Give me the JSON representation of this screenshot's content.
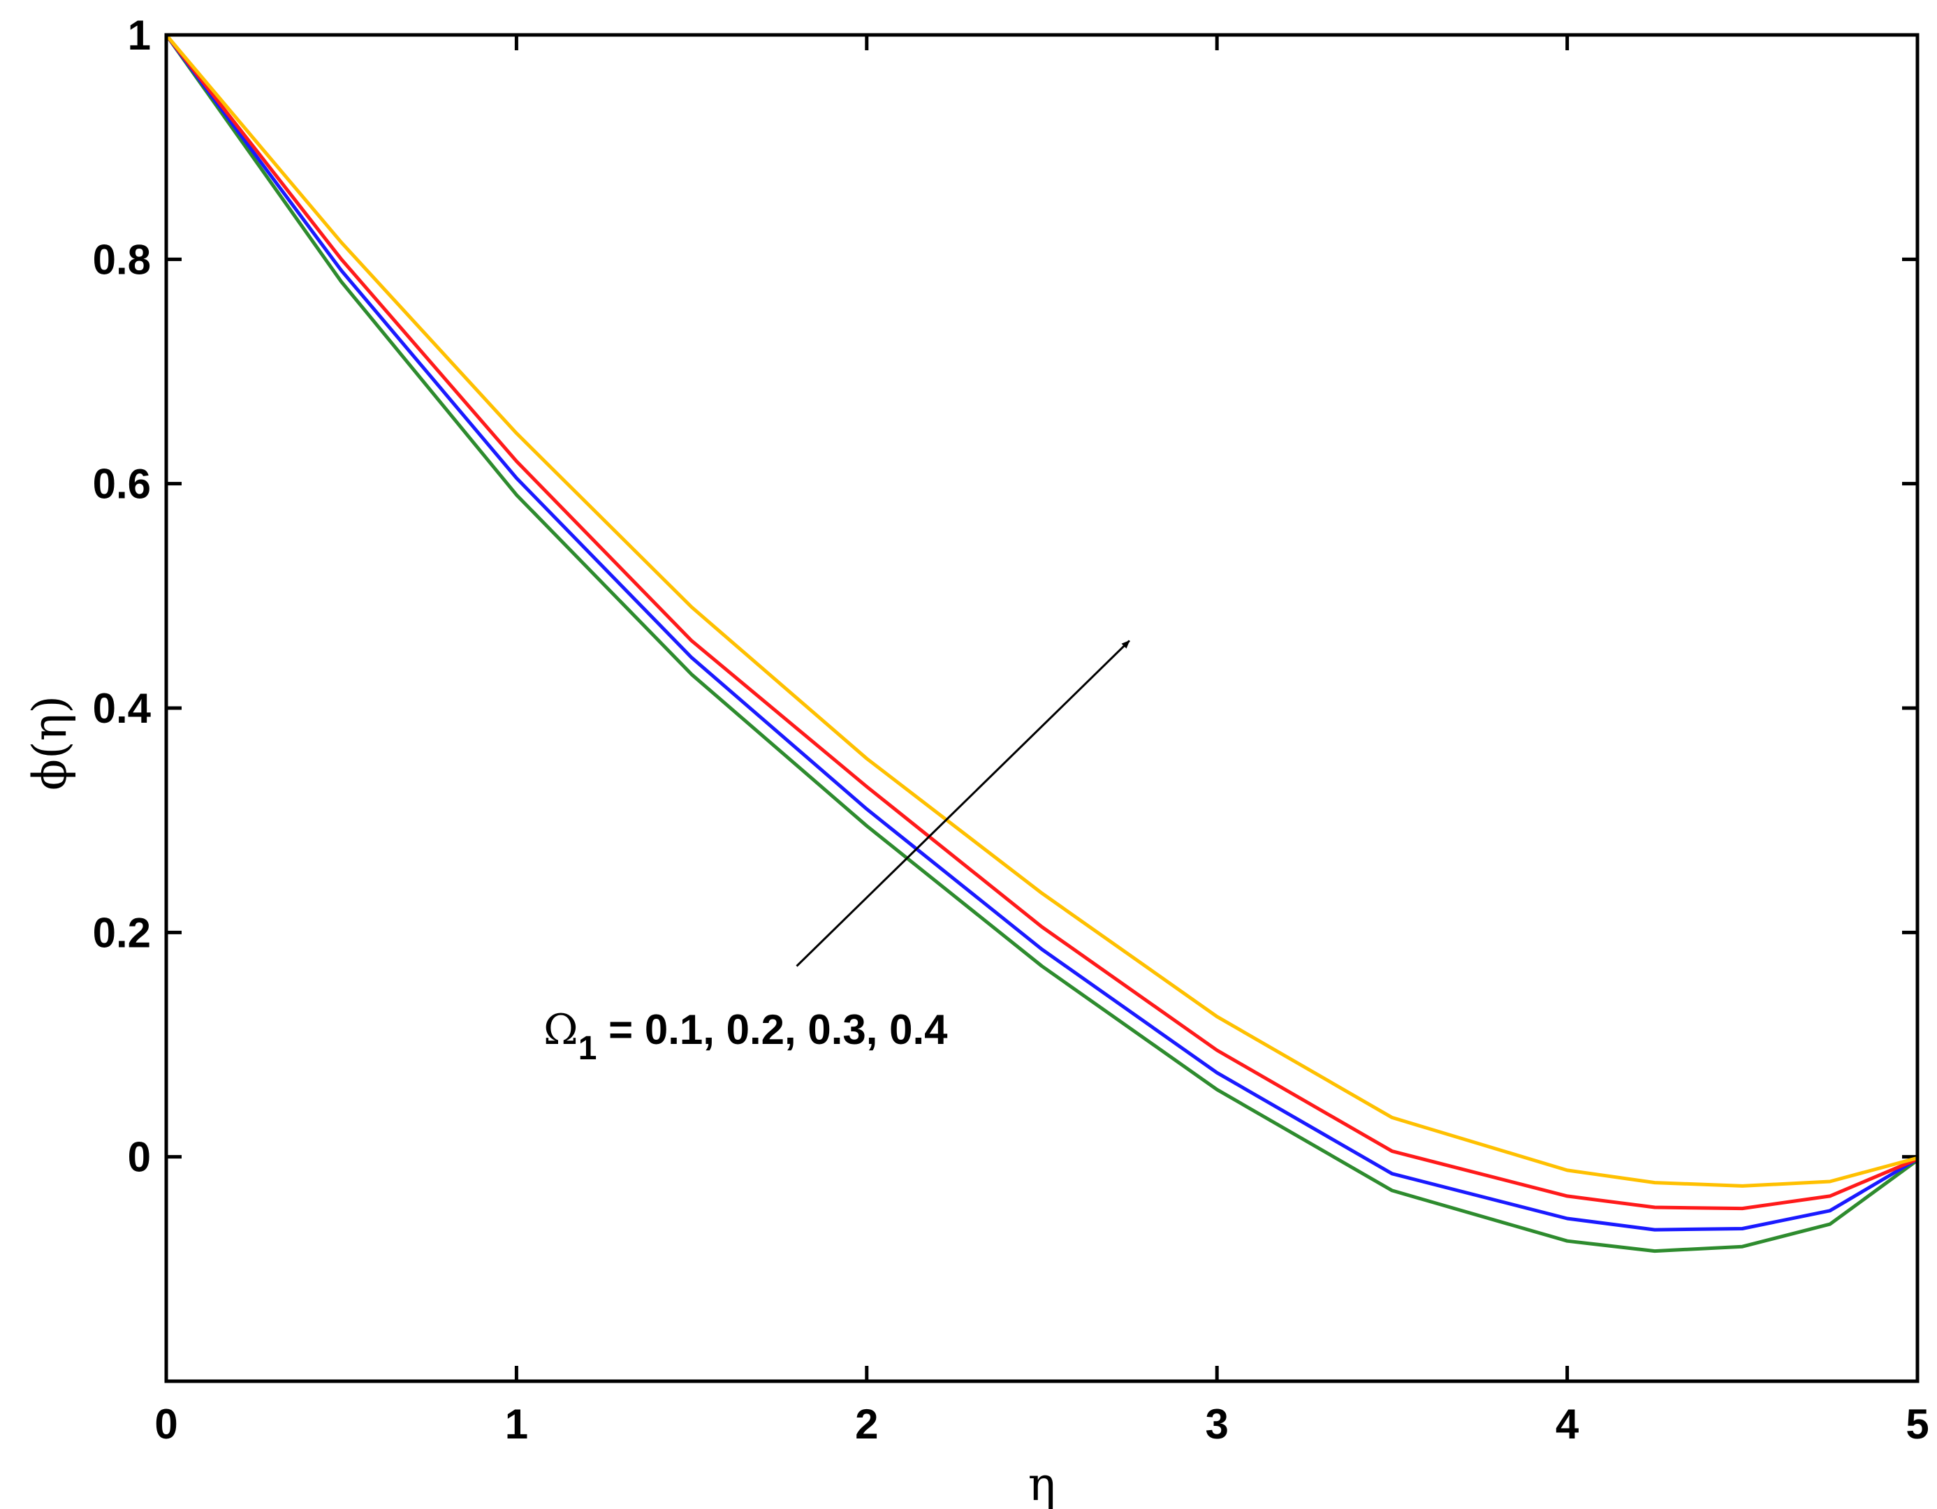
{
  "chart_data": {
    "type": "line",
    "xlabel": "η",
    "ylabel": "ϕ(η)",
    "xlim": [
      0,
      5
    ],
    "ylim": [
      -0.2,
      1
    ],
    "x_ticks": [
      0,
      1,
      2,
      3,
      4,
      5
    ],
    "x_tick_labels": [
      "0",
      "1",
      "2",
      "3",
      "4",
      "5"
    ],
    "y_ticks": [
      0,
      0.2,
      0.4,
      0.6,
      0.8,
      1
    ],
    "y_tick_labels": [
      "0",
      "0.2",
      "0.4",
      "0.6",
      "0.8",
      "1"
    ],
    "grid": false,
    "x": [
      0,
      0.5,
      1,
      1.5,
      2,
      2.5,
      3,
      3.5,
      4,
      4.25,
      4.5,
      4.75,
      5
    ],
    "series": [
      {
        "color": "#2e8b2e",
        "values": [
          1.0,
          0.78,
          0.59,
          0.43,
          0.295,
          0.17,
          0.06,
          -0.03,
          -0.075,
          -0.084,
          -0.08,
          -0.06,
          -0.003
        ]
      },
      {
        "color": "#1a1aff",
        "values": [
          1.0,
          0.79,
          0.605,
          0.445,
          0.31,
          0.185,
          0.075,
          -0.015,
          -0.055,
          -0.065,
          -0.064,
          -0.048,
          -0.002
        ]
      },
      {
        "color": "#ff1a1a",
        "values": [
          1.0,
          0.8,
          0.62,
          0.46,
          0.33,
          0.205,
          0.095,
          0.005,
          -0.035,
          -0.045,
          -0.046,
          -0.035,
          -0.002
        ]
      },
      {
        "color": "#ffc000",
        "values": [
          1.0,
          0.815,
          0.645,
          0.49,
          0.355,
          0.235,
          0.125,
          0.035,
          -0.012,
          -0.023,
          -0.026,
          -0.022,
          -0.001
        ]
      }
    ],
    "annotation": {
      "symbol": "Ω",
      "subscript": "1",
      "text": " = 0.1, 0.2, 0.3, 0.4",
      "arrow_from": [
        1.8,
        0.17
      ],
      "arrow_to": [
        2.75,
        0.46
      ]
    }
  }
}
